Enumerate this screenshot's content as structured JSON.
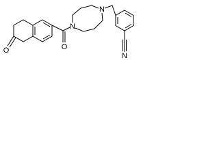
{
  "atoms": [
    {
      "label": "O"
    },
    {
      "label": "O"
    },
    {
      "label": "N"
    },
    {
      "label": "N"
    },
    {
      "label": "N"
    }
  ]
}
